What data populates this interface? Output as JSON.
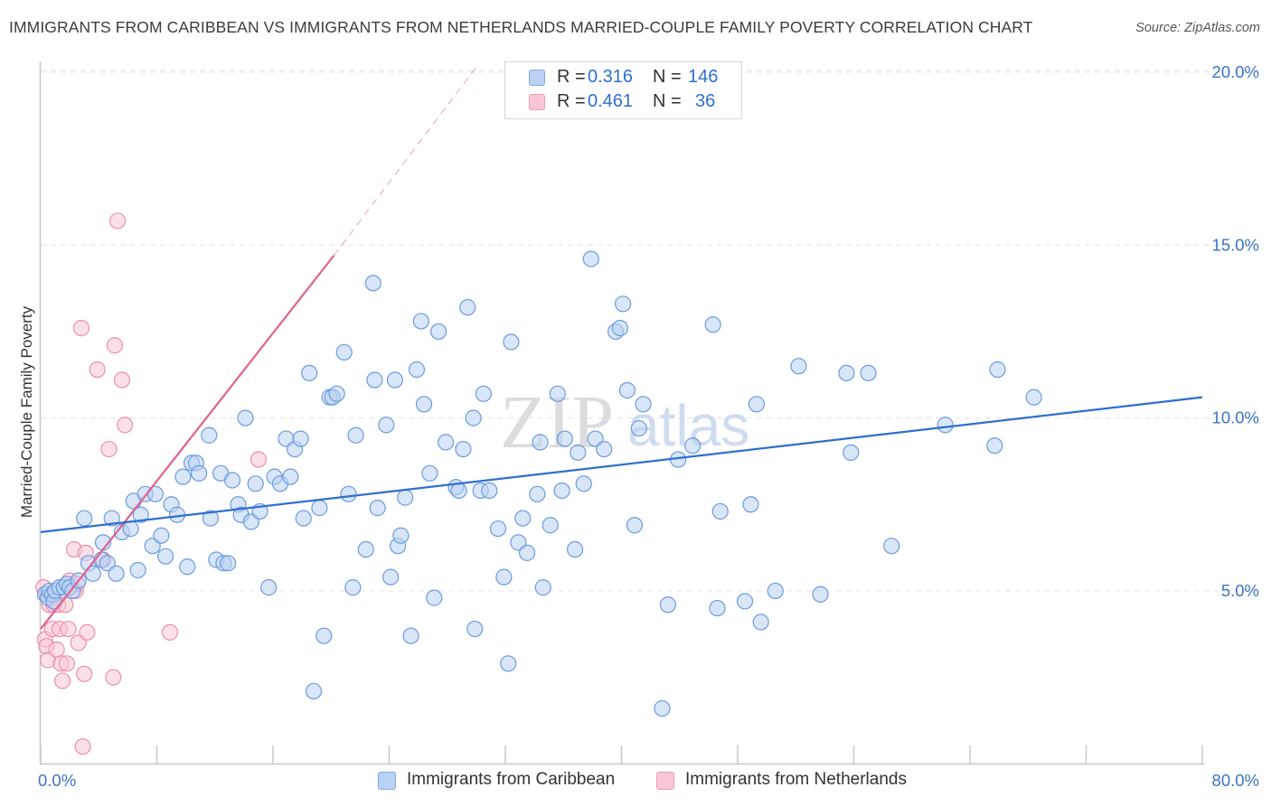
{
  "header": {
    "title": "IMMIGRANTS FROM CARIBBEAN VS IMMIGRANTS FROM NETHERLANDS MARRIED-COUPLE FAMILY POVERTY CORRELATION CHART",
    "source": "Source: ZipAtlas.com"
  },
  "legend_top": {
    "rows": [
      {
        "r_label": "R =",
        "r_value": "0.316",
        "n_label": "N =",
        "n_value": "146"
      },
      {
        "r_label": "R =",
        "r_value": "0.461",
        "n_label": "N =",
        "n_value": "36"
      }
    ]
  },
  "legend_bottom": {
    "items": [
      "Immigrants from Caribbean",
      "Immigrants from Netherlands"
    ]
  },
  "watermark": {
    "zip": "ZIP",
    "atlas": "atlas"
  },
  "colors": {
    "blue_fill": "#b9d1f3",
    "blue_stroke": "#6a9be0",
    "blue_line": "#2e6fcf",
    "pink_fill": "#f9c6d6",
    "pink_stroke": "#ec8eab",
    "pink_line": "#e0628e",
    "tick_label": "#3d74c9",
    "grid": "#e4e4e4"
  },
  "chart_data": {
    "type": "scatter",
    "title": "IMMIGRANTS FROM CARIBBEAN VS IMMIGRANTS FROM NETHERLANDS MARRIED-COUPLE FAMILY POVERTY CORRELATION CHART",
    "xlabel": "",
    "ylabel": "Married-Couple Family Poverty",
    "xlim": [
      0,
      80
    ],
    "ylim": [
      0,
      20.5
    ],
    "x_tick_labels": [
      "0.0%",
      "80.0%"
    ],
    "y_ticks": [
      5,
      10,
      15,
      20
    ],
    "y_tick_labels": [
      "5.0%",
      "10.0%",
      "15.0%",
      "20.0%"
    ],
    "grid": true,
    "legend_position": "top-center",
    "series": [
      {
        "name": "Immigrants from Caribbean",
        "color": "#6a9be0",
        "trend": {
          "x0": 0,
          "y0": 6.7,
          "x1": 80,
          "y1": 10.6
        },
        "points": [
          [
            0.3,
            4.9
          ],
          [
            0.5,
            4.8
          ],
          [
            0.6,
            5.0
          ],
          [
            0.8,
            4.9
          ],
          [
            0.9,
            4.7
          ],
          [
            1.0,
            5.0
          ],
          [
            1.3,
            5.1
          ],
          [
            1.6,
            5.1
          ],
          [
            1.8,
            5.2
          ],
          [
            2.0,
            5.1
          ],
          [
            2.2,
            5.0
          ],
          [
            2.6,
            5.3
          ],
          [
            3.0,
            7.1
          ],
          [
            3.3,
            5.8
          ],
          [
            3.6,
            5.5
          ],
          [
            4.2,
            5.9
          ],
          [
            4.3,
            6.4
          ],
          [
            4.6,
            5.8
          ],
          [
            4.9,
            7.1
          ],
          [
            5.2,
            5.5
          ],
          [
            5.6,
            6.7
          ],
          [
            6.2,
            6.8
          ],
          [
            6.4,
            7.6
          ],
          [
            6.7,
            5.6
          ],
          [
            6.9,
            7.2
          ],
          [
            7.2,
            7.8
          ],
          [
            7.7,
            6.3
          ],
          [
            7.9,
            7.8
          ],
          [
            8.3,
            6.6
          ],
          [
            8.6,
            6.0
          ],
          [
            9.0,
            7.5
          ],
          [
            9.4,
            7.2
          ],
          [
            9.8,
            8.3
          ],
          [
            10.1,
            5.7
          ],
          [
            10.4,
            8.7
          ],
          [
            10.7,
            8.7
          ],
          [
            10.9,
            8.4
          ],
          [
            11.6,
            9.5
          ],
          [
            11.7,
            7.1
          ],
          [
            12.1,
            5.9
          ],
          [
            12.4,
            8.4
          ],
          [
            12.6,
            5.8
          ],
          [
            12.9,
            5.8
          ],
          [
            13.2,
            8.2
          ],
          [
            13.6,
            7.5
          ],
          [
            13.8,
            7.2
          ],
          [
            14.1,
            10.0
          ],
          [
            14.5,
            7.0
          ],
          [
            14.8,
            8.1
          ],
          [
            15.1,
            7.3
          ],
          [
            15.7,
            5.1
          ],
          [
            16.1,
            8.3
          ],
          [
            16.5,
            8.1
          ],
          [
            16.9,
            9.4
          ],
          [
            17.2,
            8.3
          ],
          [
            17.5,
            9.1
          ],
          [
            17.9,
            9.4
          ],
          [
            18.1,
            7.1
          ],
          [
            18.5,
            11.3
          ],
          [
            18.8,
            2.1
          ],
          [
            19.2,
            7.4
          ],
          [
            19.5,
            3.7
          ],
          [
            19.9,
            10.6
          ],
          [
            20.1,
            10.6
          ],
          [
            20.4,
            10.7
          ],
          [
            20.9,
            11.9
          ],
          [
            21.2,
            7.8
          ],
          [
            21.5,
            5.1
          ],
          [
            21.7,
            9.5
          ],
          [
            22.4,
            6.2
          ],
          [
            22.9,
            13.9
          ],
          [
            23.0,
            11.1
          ],
          [
            23.2,
            7.4
          ],
          [
            23.8,
            9.8
          ],
          [
            24.1,
            5.4
          ],
          [
            24.4,
            11.1
          ],
          [
            24.6,
            6.3
          ],
          [
            24.8,
            6.6
          ],
          [
            25.1,
            7.7
          ],
          [
            25.5,
            3.7
          ],
          [
            25.9,
            11.4
          ],
          [
            26.2,
            12.8
          ],
          [
            26.4,
            10.4
          ],
          [
            26.8,
            8.4
          ],
          [
            27.1,
            4.8
          ],
          [
            27.4,
            12.5
          ],
          [
            27.9,
            9.3
          ],
          [
            28.6,
            8.0
          ],
          [
            28.8,
            7.9
          ],
          [
            29.1,
            9.1
          ],
          [
            29.4,
            13.2
          ],
          [
            29.8,
            10.0
          ],
          [
            29.9,
            3.9
          ],
          [
            30.3,
            7.9
          ],
          [
            30.5,
            10.7
          ],
          [
            30.9,
            7.9
          ],
          [
            31.5,
            6.8
          ],
          [
            31.9,
            5.4
          ],
          [
            32.2,
            2.9
          ],
          [
            32.4,
            12.2
          ],
          [
            32.9,
            6.4
          ],
          [
            33.2,
            7.1
          ],
          [
            33.5,
            6.1
          ],
          [
            34.2,
            7.8
          ],
          [
            34.4,
            9.3
          ],
          [
            34.6,
            5.1
          ],
          [
            35.1,
            6.9
          ],
          [
            35.6,
            10.7
          ],
          [
            35.9,
            7.9
          ],
          [
            36.1,
            9.4
          ],
          [
            36.8,
            6.2
          ],
          [
            37.0,
            9.0
          ],
          [
            37.4,
            8.1
          ],
          [
            37.9,
            14.6
          ],
          [
            38.2,
            9.4
          ],
          [
            38.8,
            9.1
          ],
          [
            39.6,
            12.5
          ],
          [
            39.9,
            12.6
          ],
          [
            40.1,
            13.3
          ],
          [
            40.4,
            10.8
          ],
          [
            40.9,
            6.9
          ],
          [
            41.2,
            9.7
          ],
          [
            41.5,
            10.4
          ],
          [
            42.8,
            1.6
          ],
          [
            43.2,
            4.6
          ],
          [
            43.9,
            8.8
          ],
          [
            44.9,
            9.2
          ],
          [
            46.3,
            12.7
          ],
          [
            46.6,
            4.5
          ],
          [
            46.8,
            7.3
          ],
          [
            48.5,
            4.7
          ],
          [
            48.9,
            7.5
          ],
          [
            49.3,
            10.4
          ],
          [
            49.6,
            4.1
          ],
          [
            50.6,
            5.0
          ],
          [
            52.2,
            11.5
          ],
          [
            53.7,
            4.9
          ],
          [
            55.5,
            11.3
          ],
          [
            55.8,
            9.0
          ],
          [
            57.0,
            11.3
          ],
          [
            58.6,
            6.3
          ],
          [
            62.3,
            9.8
          ],
          [
            65.7,
            9.2
          ],
          [
            65.9,
            11.4
          ],
          [
            68.4,
            10.6
          ]
        ]
      },
      {
        "name": "Immigrants from Netherlands",
        "color": "#ec8eab",
        "trend": {
          "x0": 0,
          "y0": 3.9,
          "x1": 20.2,
          "y1": 14.7,
          "dashed_to": {
            "x": 30.1,
            "y": 20.2
          }
        },
        "points": [
          [
            0.2,
            5.1
          ],
          [
            0.3,
            3.6
          ],
          [
            0.4,
            3.4
          ],
          [
            0.5,
            3.0
          ],
          [
            0.6,
            4.6
          ],
          [
            0.8,
            3.9
          ],
          [
            0.9,
            4.6
          ],
          [
            1.1,
            3.3
          ],
          [
            1.2,
            4.6
          ],
          [
            1.3,
            3.9
          ],
          [
            1.4,
            2.9
          ],
          [
            1.5,
            2.4
          ],
          [
            1.7,
            4.6
          ],
          [
            1.8,
            2.9
          ],
          [
            1.9,
            3.9
          ],
          [
            2.0,
            5.3
          ],
          [
            2.3,
            6.2
          ],
          [
            2.4,
            5.0
          ],
          [
            2.5,
            5.2
          ],
          [
            2.6,
            3.5
          ],
          [
            2.8,
            12.6
          ],
          [
            2.9,
            0.5
          ],
          [
            3.0,
            2.6
          ],
          [
            3.1,
            6.1
          ],
          [
            3.2,
            3.8
          ],
          [
            3.9,
            11.4
          ],
          [
            4.3,
            5.9
          ],
          [
            4.7,
            9.1
          ],
          [
            5.0,
            2.5
          ],
          [
            5.1,
            12.1
          ],
          [
            5.3,
            15.7
          ],
          [
            5.6,
            11.1
          ],
          [
            5.8,
            9.8
          ],
          [
            8.9,
            3.8
          ],
          [
            15.0,
            8.8
          ],
          [
            0.4,
            4.9
          ]
        ]
      }
    ]
  }
}
